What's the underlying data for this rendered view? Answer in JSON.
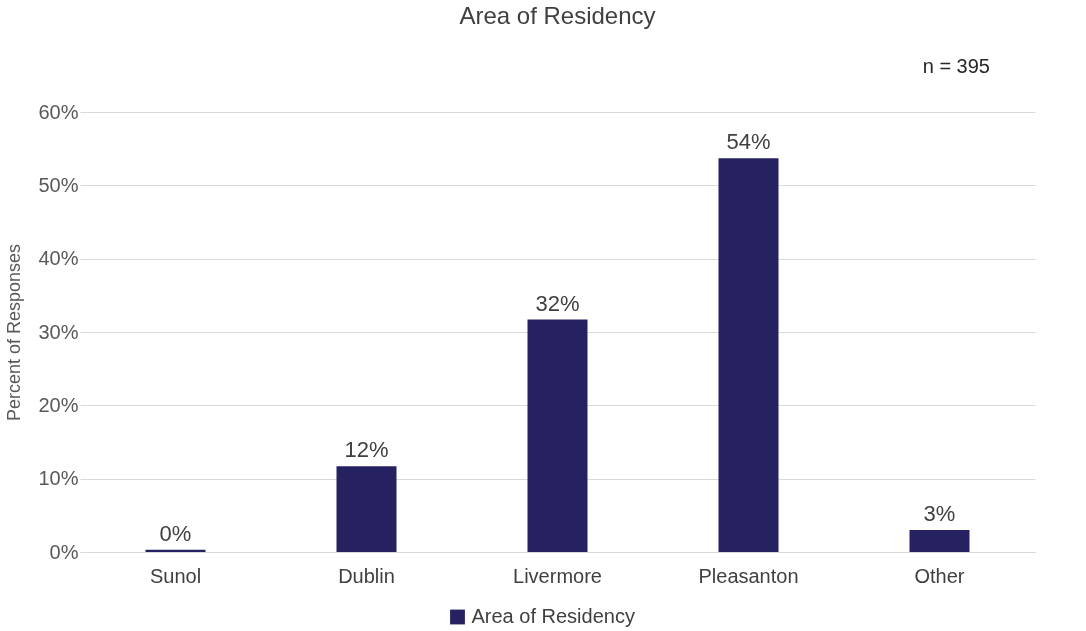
{
  "chart_data": {
    "type": "bar",
    "title": "Area of Residency",
    "ylabel": "Percent of Responses",
    "categories": [
      "Sunol",
      "Dublin",
      "Livermore",
      "Pleasanton",
      "Other"
    ],
    "series": [
      {
        "name": "Area of Residency",
        "color": "#262262",
        "values": [
          0.3,
          11.7,
          31.7,
          53.7,
          3.0
        ],
        "value_labels": [
          "0%",
          "12%",
          "32%",
          "54%",
          "3%"
        ]
      }
    ],
    "ylim": [
      0,
      60
    ],
    "yticks": [
      {
        "value": 0,
        "label": "0%"
      },
      {
        "value": 10,
        "label": "10%"
      },
      {
        "value": 20,
        "label": "20%"
      },
      {
        "value": 30,
        "label": "30%"
      },
      {
        "value": 40,
        "label": "40%"
      },
      {
        "value": 50,
        "label": "50%"
      },
      {
        "value": 60,
        "label": "60%"
      }
    ],
    "annotations": [
      "n = 395"
    ],
    "grid": "y",
    "legend": "bottom"
  }
}
